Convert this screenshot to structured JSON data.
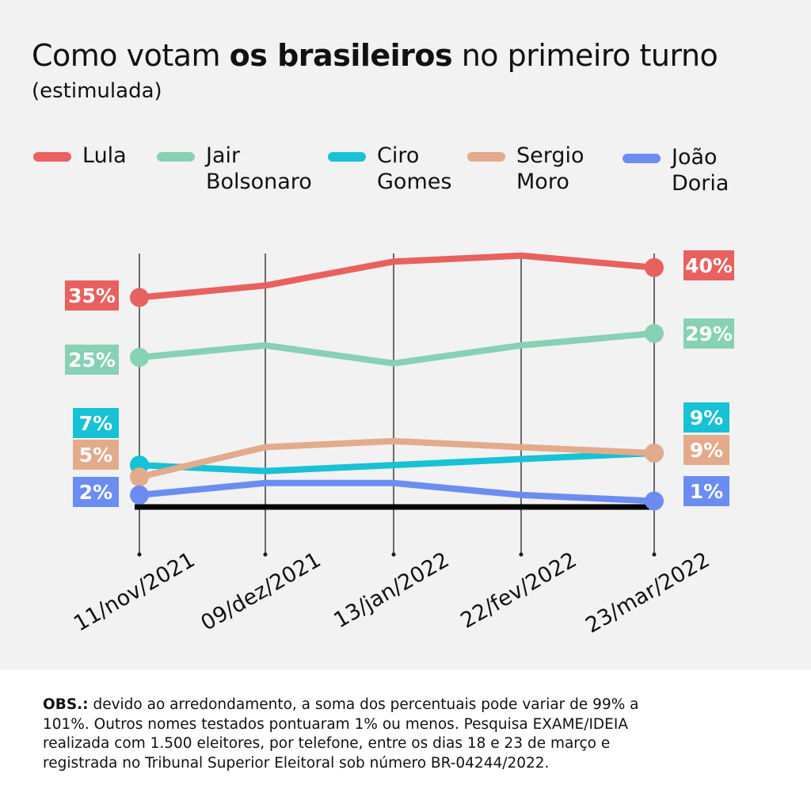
{
  "title": {
    "part1": "Como votam ",
    "bold": "os brasileiros",
    "part2": " no primeiro turno"
  },
  "subtitle": "(estimulada)",
  "footnote": {
    "label": "OBS.:",
    "text": " devido ao arredondamento, a soma dos percentuais pode variar de 99% a 101%. Outros nomes testados pontuaram 1% ou menos. Pesquisa EXAME/IDEIA realizada com 1.500 eleitores, por telefone, entre os dias 18 e 23 de março e registrada no Tribunal Superior Eleitoral sob número BR-04244/2022."
  },
  "chart_data": {
    "type": "line",
    "categories": [
      "11/nov/2021",
      "09/dez/2021",
      "13/jan/2022",
      "22/fev/2022",
      "23/mar/2022"
    ],
    "ylim": [
      0,
      45
    ],
    "series": [
      {
        "name": "Lula",
        "legend": "Lula",
        "color": "#e8615f",
        "values": [
          35,
          37,
          41,
          42,
          40
        ],
        "first_label": "35%",
        "last_label": "40%"
      },
      {
        "name": "Jair Bolsonaro",
        "legend": "Jair\nBolsonaro",
        "color": "#87d1b5",
        "values": [
          25,
          27,
          24,
          27,
          29
        ],
        "first_label": "25%",
        "last_label": "29%"
      },
      {
        "name": "Ciro Gomes",
        "legend": "Ciro\nGomes",
        "color": "#17c1d6",
        "values": [
          7,
          6,
          7,
          8,
          9
        ],
        "first_label": "7%",
        "last_label": "9%"
      },
      {
        "name": "Sergio Moro",
        "legend": "Sergio\nMoro",
        "color": "#e3ab8b",
        "values": [
          5,
          10,
          11,
          10,
          9
        ],
        "first_label": "5%",
        "last_label": "9%"
      },
      {
        "name": "João Doria",
        "legend": "João\nDoria",
        "color": "#6b8df2",
        "values": [
          2,
          4,
          4,
          2,
          1
        ],
        "first_label": "2%",
        "last_label": "1%"
      }
    ]
  }
}
